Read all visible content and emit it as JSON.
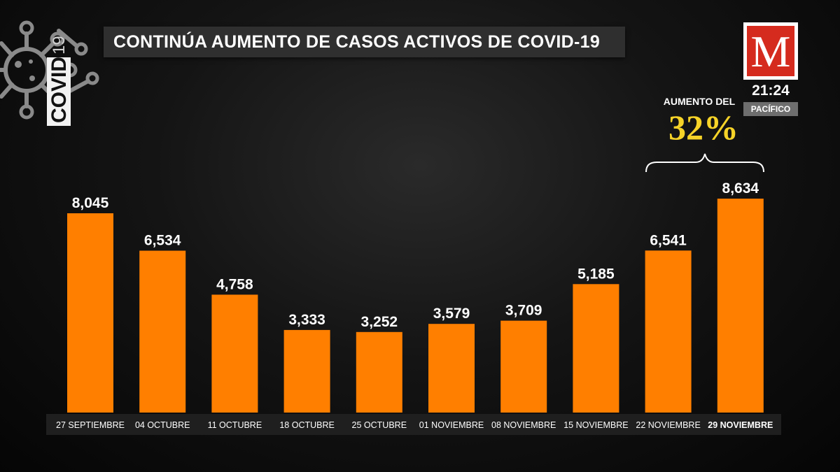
{
  "header": {
    "title": "CONTINÚA AUMENTO DE CASOS ACTIVOS DE COVID-19",
    "covid_word": "COVID",
    "covid_number": "19"
  },
  "brand": {
    "logo_letter": "M",
    "time": "21:24",
    "timezone": "PACÍFICO"
  },
  "annotation": {
    "label": "AUMENTO DEL",
    "percent": "32%"
  },
  "colors": {
    "bar": "#ff7f00",
    "accent_yellow": "#f6d328",
    "logo_red": "#d52b1e"
  },
  "chart_data": {
    "type": "bar",
    "title": "CONTINÚA AUMENTO DE CASOS ACTIVOS DE COVID-19",
    "categories": [
      "27 SEPTIEMBRE",
      "04 OCTUBRE",
      "11 OCTUBRE",
      "18 OCTUBRE",
      "25 OCTUBRE",
      "01 NOVIEMBRE",
      "08 NOVIEMBRE",
      "15 NOVIEMBRE",
      "22 NOVIEMBRE",
      "29 NOVIEMBRE"
    ],
    "values": [
      8045,
      6534,
      4758,
      3333,
      3252,
      3579,
      3709,
      5185,
      6541,
      8634
    ],
    "value_labels": [
      "8,045",
      "6,534",
      "4,758",
      "3,333",
      "3,252",
      "3,579",
      "3,709",
      "5,185",
      "6,541",
      "8,634"
    ],
    "xlabel": "",
    "ylabel": "",
    "ylim": [
      0,
      10000
    ],
    "grid": false,
    "legend": "none"
  }
}
